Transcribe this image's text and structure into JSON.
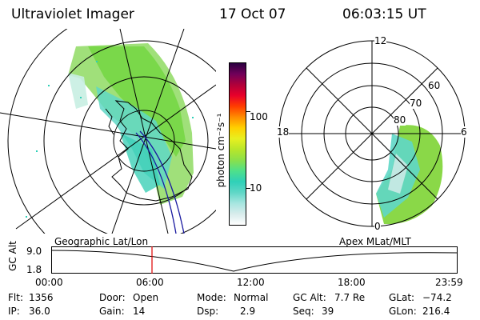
{
  "header": {
    "title": "Ultraviolet Imager",
    "date": "17 Oct 07",
    "time": "06:03:15 UT"
  },
  "colorbar": {
    "unit_label": "photon cm⁻²s⁻¹",
    "ticks": [
      "100",
      "10"
    ],
    "ticks_values": [
      100,
      10
    ],
    "colors": [
      "#ffffff",
      "#d8ecec",
      "#a6e6e0",
      "#5fd7c6",
      "#2fd0b8",
      "#4ee08a",
      "#8be04a",
      "#b8e62a",
      "#e8f020",
      "#ffd000",
      "#ff8c00",
      "#ff3c00",
      "#e8002a",
      "#b0003a",
      "#70005a",
      "#2a0040"
    ]
  },
  "left_map": {
    "label": "Geographic Lat/Lon",
    "icon": "geographic-projection-map"
  },
  "right_map": {
    "label": "Apex MLat/MLT",
    "mlt_labels": [
      "12",
      "18",
      "6",
      "0"
    ],
    "mlat_labels": [
      "60",
      "70",
      "80"
    ]
  },
  "altitude_strip": {
    "axis_label": "GC Alt",
    "y_values": [
      "9.0",
      "1.8"
    ],
    "x_ticks": [
      "00:00",
      "06:00",
      "12:00",
      "18:00",
      "23:59"
    ],
    "current_time_color": "#e00000"
  },
  "info": {
    "flt_label": "Flt:",
    "flt_value": "1356",
    "ip_label": "IP:",
    "ip_value": "36.0",
    "door_label": "Door:",
    "door_value": "Open",
    "gain_label": "Gain:",
    "gain_value": "14",
    "mode_label": "Mode:",
    "mode_value": "Normal",
    "dsp_label": "Dsp:",
    "dsp_value": "2.9",
    "gcalt_label": "GC Alt:",
    "gcalt_value": "7.7 Re",
    "seq_label": "Seq:",
    "seq_value": "39",
    "glat_label": "GLat:",
    "glat_value": "−74.2",
    "glon_label": "GLon:",
    "glon_value": "216.4"
  }
}
